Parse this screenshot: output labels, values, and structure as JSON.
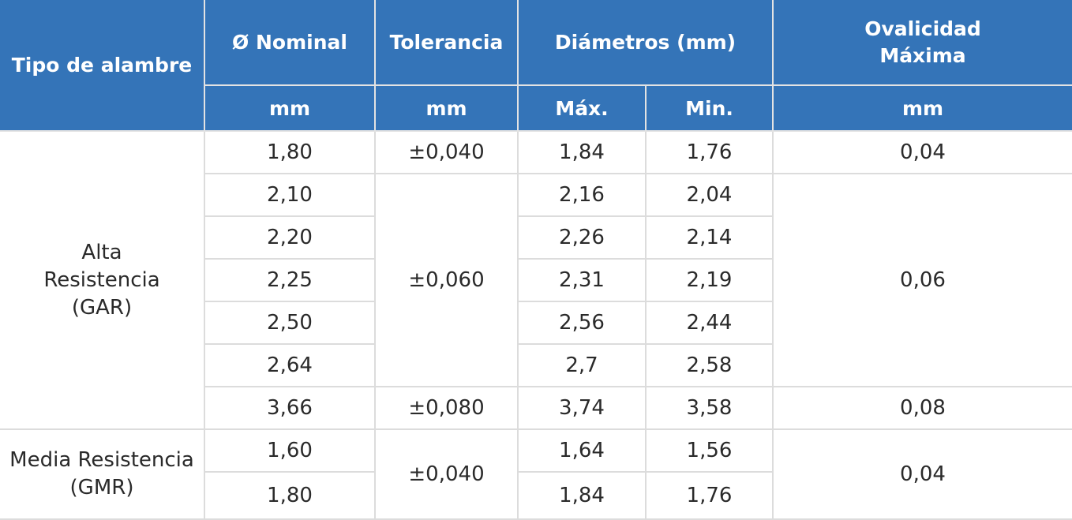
{
  "header": {
    "tipo": "Tipo de alambre",
    "nominal": "Ø Nominal",
    "tolerancia": "Tolerancia",
    "diametros": "Diámetros (mm)",
    "ovalidad_l1": "Ovalicidad",
    "ovalidad_l2": "Máxima",
    "unit_nominal": "mm",
    "unit_tolerancia": "mm",
    "max": "Máx.",
    "min": "Min.",
    "unit_ovalidad": "mm"
  },
  "groups": [
    {
      "type_l1": "Alta",
      "type_l2": "Resistencia",
      "type_l3": "(GAR)",
      "rows": [
        {
          "nominal": "1,80",
          "max": "1,84",
          "min": "1,76"
        },
        {
          "nominal": "2,10",
          "max": "2,16",
          "min": "2,04"
        },
        {
          "nominal": "2,20",
          "max": "2,26",
          "min": "2,14"
        },
        {
          "nominal": "2,25",
          "max": "2,31",
          "min": "2,19"
        },
        {
          "nominal": "2,50",
          "max": "2,56",
          "min": "2,44"
        },
        {
          "nominal": "2,64",
          "max": "2,7",
          "min": "2,58"
        },
        {
          "nominal": "3,66",
          "max": "3,74",
          "min": "3,58"
        }
      ],
      "tolerances": [
        "±0,040",
        "±0,060",
        "±0,080"
      ],
      "ovalities": [
        "0,04",
        "0,06",
        "0,08"
      ]
    },
    {
      "type_l1": "Media Resistencia",
      "type_l2": "(GMR)",
      "rows": [
        {
          "nominal": "1,60",
          "max": "1,64",
          "min": "1,56"
        },
        {
          "nominal": "1,80",
          "max": "1,84",
          "min": "1,76"
        }
      ],
      "tolerances": [
        "±0,040"
      ],
      "ovalities": [
        "0,04"
      ]
    }
  ]
}
